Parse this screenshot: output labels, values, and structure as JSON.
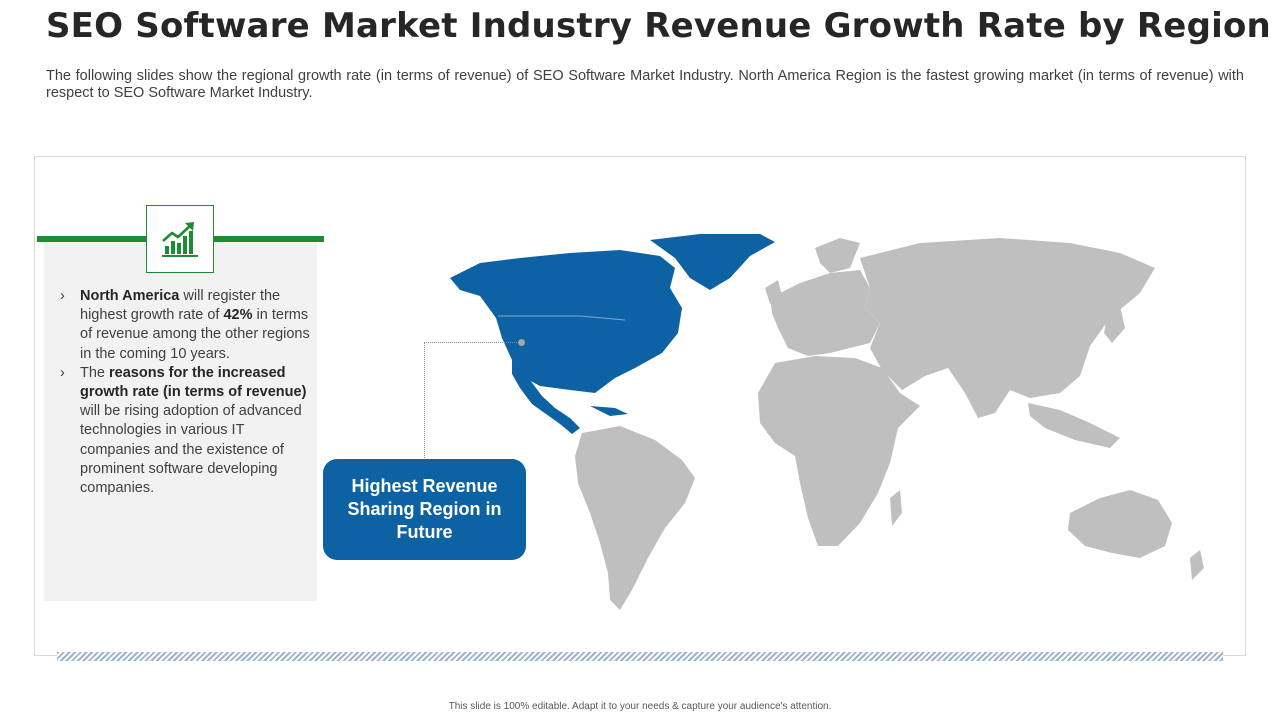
{
  "slide": {
    "title": "SEO Software Market Industry Revenue Growth Rate by Region",
    "subtitle": "The following slides show the regional growth rate (in terms of revenue) of SEO Software Market Industry.  North America Region is the fastest growing market (in terms of revenue) with respect to SEO Software Market Industry."
  },
  "panel": {
    "icon": "growth-chart-icon",
    "bullet_marker": "›",
    "bullet1": {
      "region": "North America",
      "text_a": " will register the highest growth rate of ",
      "rate": "42%",
      "text_b": " in terms of revenue among the other regions in the coming 10 years."
    },
    "bullet2": {
      "text_a": "The ",
      "emphasis": "reasons for the increased growth rate (in terms of revenue)",
      "text_b": " will be rising adoption of advanced technologies in various IT companies and the existence of prominent software developing companies."
    }
  },
  "map": {
    "highlighted_region": "North America",
    "callout": "Highest Revenue Sharing Region in Future"
  },
  "colors": {
    "highlight": "#0d62a3",
    "land": "#bfbfbf",
    "accent_green": "#1e8c33"
  },
  "footer": {
    "note": "This slide is 100% editable. Adapt it to your needs & capture your audience's attention."
  }
}
